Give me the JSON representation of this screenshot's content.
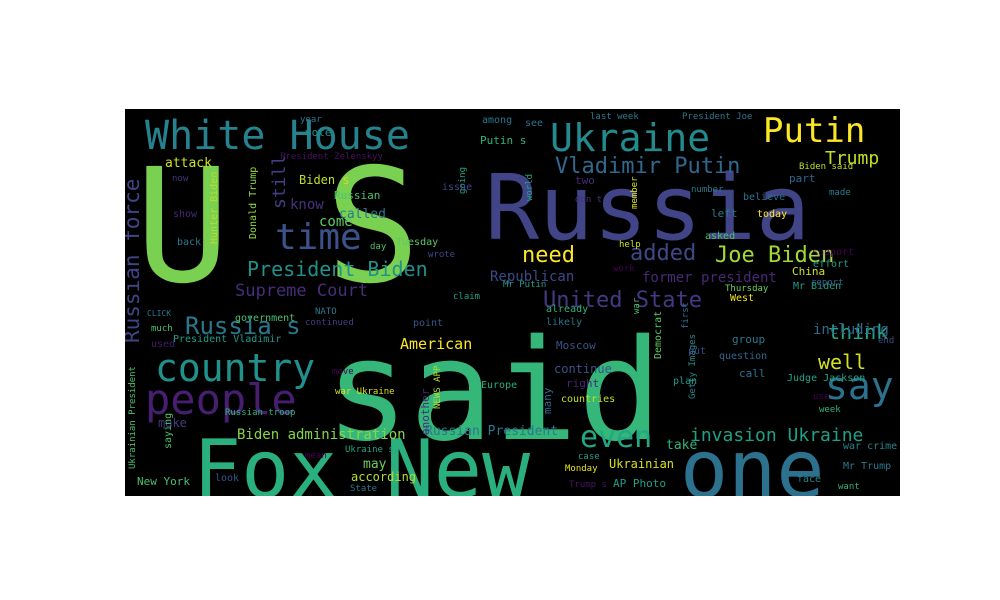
{
  "wordcloud": {
    "background": "#000000",
    "words": [
      {
        "text": "U S",
        "color": "#7ad151"
      },
      {
        "text": "said",
        "color": "#35b779"
      },
      {
        "text": "Russia",
        "color": "#414487"
      },
      {
        "text": "Fox New",
        "color": "#2ab07f"
      },
      {
        "text": "one",
        "color": "#2c728e"
      },
      {
        "text": "White House",
        "color": "#26828e"
      },
      {
        "text": "Ukraine",
        "color": "#238a8d"
      },
      {
        "text": "Putin",
        "color": "#fde725"
      },
      {
        "text": "Vladimir Putin",
        "color": "#31688e"
      },
      {
        "text": "Trump",
        "color": "#c2df23"
      },
      {
        "text": "time",
        "color": "#3b528b"
      },
      {
        "text": "country",
        "color": "#21918c"
      },
      {
        "text": "people",
        "color": "#481f70"
      },
      {
        "text": "say",
        "color": "#2c728e"
      },
      {
        "text": "even",
        "color": "#22a884"
      },
      {
        "text": "invasion Ukraine",
        "color": "#1fa187"
      },
      {
        "text": "Joe Biden",
        "color": "#a0da39"
      },
      {
        "text": "added",
        "color": "#3e4989"
      },
      {
        "text": "need",
        "color": "#fde725"
      },
      {
        "text": "President Biden",
        "color": "#21918c"
      },
      {
        "text": "Supreme Court",
        "color": "#472d7b"
      },
      {
        "text": "United State",
        "color": "#443983"
      },
      {
        "text": "Russia s",
        "color": "#2a788e"
      },
      {
        "text": "think",
        "color": "#22a884"
      },
      {
        "text": "well",
        "color": "#d2e21b"
      },
      {
        "text": "American",
        "color": "#fde725"
      },
      {
        "text": "Russian force",
        "color": "#414487"
      },
      {
        "text": "Biden administration",
        "color": "#86d549"
      },
      {
        "text": "Russian President",
        "color": "#2a788e"
      },
      {
        "text": "Republican",
        "color": "#3e4989"
      },
      {
        "text": "former president",
        "color": "#482878"
      },
      {
        "text": "including",
        "color": "#31688e"
      },
      {
        "text": "come",
        "color": "#5ec962"
      },
      {
        "text": "know",
        "color": "#46337f"
      },
      {
        "text": "called",
        "color": "#2a788e"
      },
      {
        "text": "Russian",
        "color": "#4ac16d"
      },
      {
        "text": "Biden s",
        "color": "#c2df23"
      },
      {
        "text": "still",
        "color": "#433e85"
      },
      {
        "text": "attack",
        "color": "#cde11d"
      },
      {
        "text": "Hunter Biden",
        "color": "#b5de2b"
      },
      {
        "text": "Donald Trump",
        "color": "#95d840"
      },
      {
        "text": "Ukrainian President",
        "color": "#4ac16d"
      },
      {
        "text": "New York",
        "color": "#4ac16d"
      },
      {
        "text": "may",
        "color": "#6ece58"
      },
      {
        "text": "according",
        "color": "#b5de2b"
      },
      {
        "text": "Ukrainian",
        "color": "#d8e219"
      },
      {
        "text": "AP Photo",
        "color": "#1f9e89"
      },
      {
        "text": "Getty Images",
        "color": "#228c8d"
      },
      {
        "text": "Judge Jackson",
        "color": "#20a486"
      },
      {
        "text": "war crime",
        "color": "#24868e"
      },
      {
        "text": "Mr Trump",
        "color": "#2a788e"
      },
      {
        "text": "Mr Biden",
        "color": "#1f9e89"
      },
      {
        "text": "Biden said",
        "color": "#bddf26"
      },
      {
        "text": "President Joe",
        "color": "#2a788e"
      },
      {
        "text": "last week",
        "color": "#287c8e"
      },
      {
        "text": "Tuesday",
        "color": "#5ec962"
      },
      {
        "text": "Thursday",
        "color": "#6ece58"
      },
      {
        "text": "Monday",
        "color": "#e5e419"
      },
      {
        "text": "Europe",
        "color": "#25ac82"
      },
      {
        "text": "Moscow",
        "color": "#3b528b"
      },
      {
        "text": "China",
        "color": "#d0e11c"
      },
      {
        "text": "West",
        "color": "#f1e51d"
      },
      {
        "text": "countries",
        "color": "#c5e021"
      },
      {
        "text": "right",
        "color": "#482475"
      },
      {
        "text": "continue",
        "color": "#3b528b"
      },
      {
        "text": "question",
        "color": "#31688e"
      },
      {
        "text": "call",
        "color": "#2c728e"
      },
      {
        "text": "plan",
        "color": "#1f9a8a"
      },
      {
        "text": "take",
        "color": "#31b57b"
      },
      {
        "text": "put",
        "color": "#3e4989"
      },
      {
        "text": "first",
        "color": "#2e6e8e"
      },
      {
        "text": "Democrat",
        "color": "#5ec962"
      },
      {
        "text": "war",
        "color": "#4ac16d"
      },
      {
        "text": "make",
        "color": "#453882"
      },
      {
        "text": "saying",
        "color": "#4ac16d"
      },
      {
        "text": "look",
        "color": "#3b528b"
      },
      {
        "text": "show",
        "color": "#482878"
      },
      {
        "text": "back",
        "color": "#2a788e"
      },
      {
        "text": "now",
        "color": "#46327e"
      },
      {
        "text": "used",
        "color": "#481a6c"
      },
      {
        "text": "much",
        "color": "#4ac16d"
      },
      {
        "text": "CLICK",
        "color": "#2a788e"
      },
      {
        "text": "President Vladimir",
        "color": "#1f9e89"
      },
      {
        "text": "government",
        "color": "#4ac16d"
      },
      {
        "text": "continued",
        "color": "#433e85"
      },
      {
        "text": "Russian troop",
        "color": "#2fb47c"
      },
      {
        "text": "war Ukraine",
        "color": "#d5e21a"
      },
      {
        "text": "Ukraine s",
        "color": "#20a486"
      },
      {
        "text": "State",
        "color": "#2a788e"
      },
      {
        "text": "Trump s",
        "color": "#481467"
      },
      {
        "text": "another",
        "color": "#472c7a"
      },
      {
        "text": "NEWS APP",
        "color": "#b8de29"
      },
      {
        "text": "many",
        "color": "#31688e"
      },
      {
        "text": "likely",
        "color": "#2c728e"
      },
      {
        "text": "already",
        "color": "#2fb47c"
      },
      {
        "text": "point",
        "color": "#3b528b"
      },
      {
        "text": "claim",
        "color": "#1fa187"
      },
      {
        "text": "Mr Putin",
        "color": "#1f9e89"
      },
      {
        "text": "wrote",
        "color": "#3e4989"
      },
      {
        "text": "day",
        "color": "#4ac16d"
      },
      {
        "text": "move",
        "color": "#440154"
      },
      {
        "text": "case",
        "color": "#1f9e89"
      },
      {
        "text": "face",
        "color": "#26828e"
      },
      {
        "text": "want",
        "color": "#2fb47c"
      },
      {
        "text": "week",
        "color": "#2fb47c"
      },
      {
        "text": "report",
        "color": "#31688e"
      },
      {
        "text": "support",
        "color": "#450457"
      },
      {
        "text": "effort",
        "color": "#1f9e89"
      },
      {
        "text": "group",
        "color": "#2a788e"
      },
      {
        "text": "end",
        "color": "#3e4989"
      },
      {
        "text": "today",
        "color": "#fde725"
      },
      {
        "text": "left",
        "color": "#2a788e"
      },
      {
        "text": "believe",
        "color": "#2c728e"
      },
      {
        "text": "number",
        "color": "#2a788e"
      },
      {
        "text": "asked",
        "color": "#4ac16d"
      },
      {
        "text": "member",
        "color": "#d8e219"
      },
      {
        "text": "made",
        "color": "#287c8e"
      },
      {
        "text": "part",
        "color": "#31688e"
      },
      {
        "text": "world",
        "color": "#20a486"
      },
      {
        "text": "don t",
        "color": "#46337f"
      },
      {
        "text": "two",
        "color": "#482878"
      },
      {
        "text": "going",
        "color": "#1f9e89"
      },
      {
        "text": "issue",
        "color": "#3e4989"
      },
      {
        "text": "work",
        "color": "#440154"
      },
      {
        "text": "help",
        "color": "#d0e11c"
      },
      {
        "text": "Putin s",
        "color": "#2fb47c"
      },
      {
        "text": "see",
        "color": "#2c728e"
      },
      {
        "text": "among",
        "color": "#2a788e"
      },
      {
        "text": "year",
        "color": "#2a788e"
      },
      {
        "text": "vote",
        "color": "#21918c"
      },
      {
        "text": "President Zelenskyy",
        "color": "#471063"
      },
      {
        "text": "mean",
        "color": "#440154"
      },
      {
        "text": "use",
        "color": "#440154"
      },
      {
        "text": "NATO",
        "color": "#2a788e"
      }
    ]
  }
}
